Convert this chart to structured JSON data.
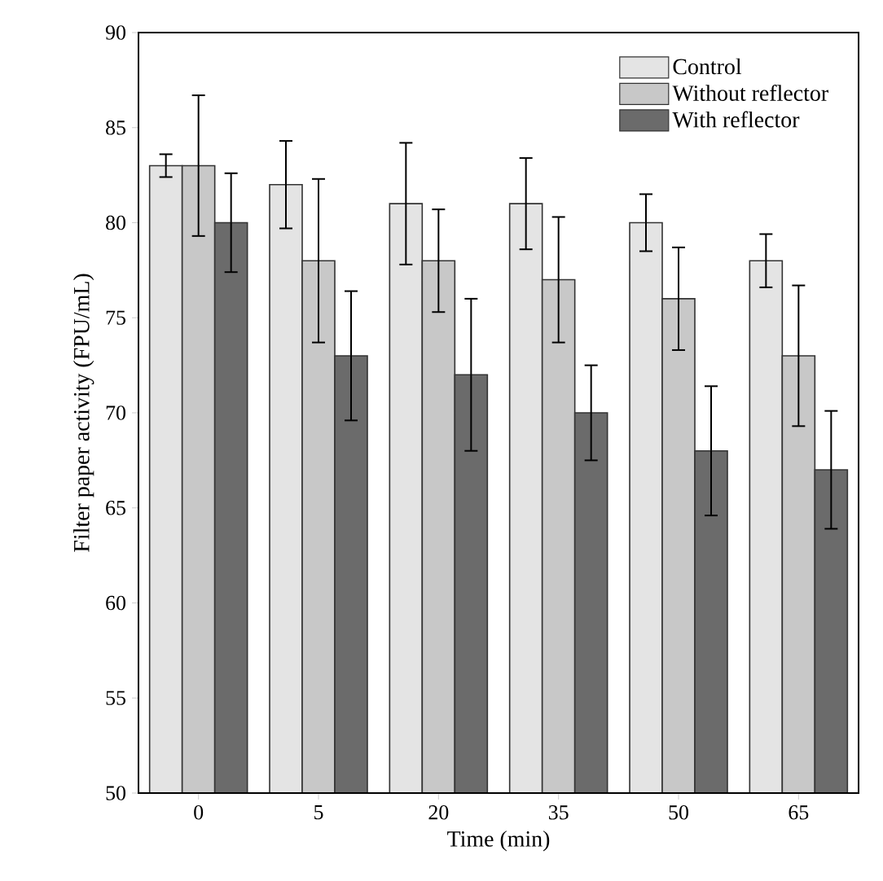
{
  "chart_data": {
    "type": "bar",
    "xlabel": "Time (min)",
    "ylabel": "Filter paper activity (FPU/mL)",
    "categories": [
      "0",
      "5",
      "20",
      "35",
      "50",
      "65"
    ],
    "series": [
      {
        "name": "Control",
        "color": "#e4e4e4",
        "values": [
          83,
          82,
          81,
          81,
          80,
          78
        ],
        "errors": [
          0.6,
          2.3,
          3.2,
          2.4,
          1.5,
          1.4
        ]
      },
      {
        "name": "Without reflector",
        "color": "#c8c8c8",
        "values": [
          83,
          78,
          78,
          77,
          76,
          73
        ],
        "errors": [
          3.7,
          4.3,
          2.7,
          3.3,
          2.7,
          3.7
        ]
      },
      {
        "name": "With reflector",
        "color": "#6b6b6b",
        "values": [
          80,
          73,
          72,
          70,
          68,
          67
        ],
        "errors": [
          2.6,
          3.4,
          4.0,
          2.5,
          3.4,
          3.1
        ]
      }
    ],
    "ylim": [
      50,
      90
    ],
    "yticks": [
      50,
      55,
      60,
      65,
      70,
      75,
      80,
      85,
      90
    ],
    "legend": "top right"
  }
}
